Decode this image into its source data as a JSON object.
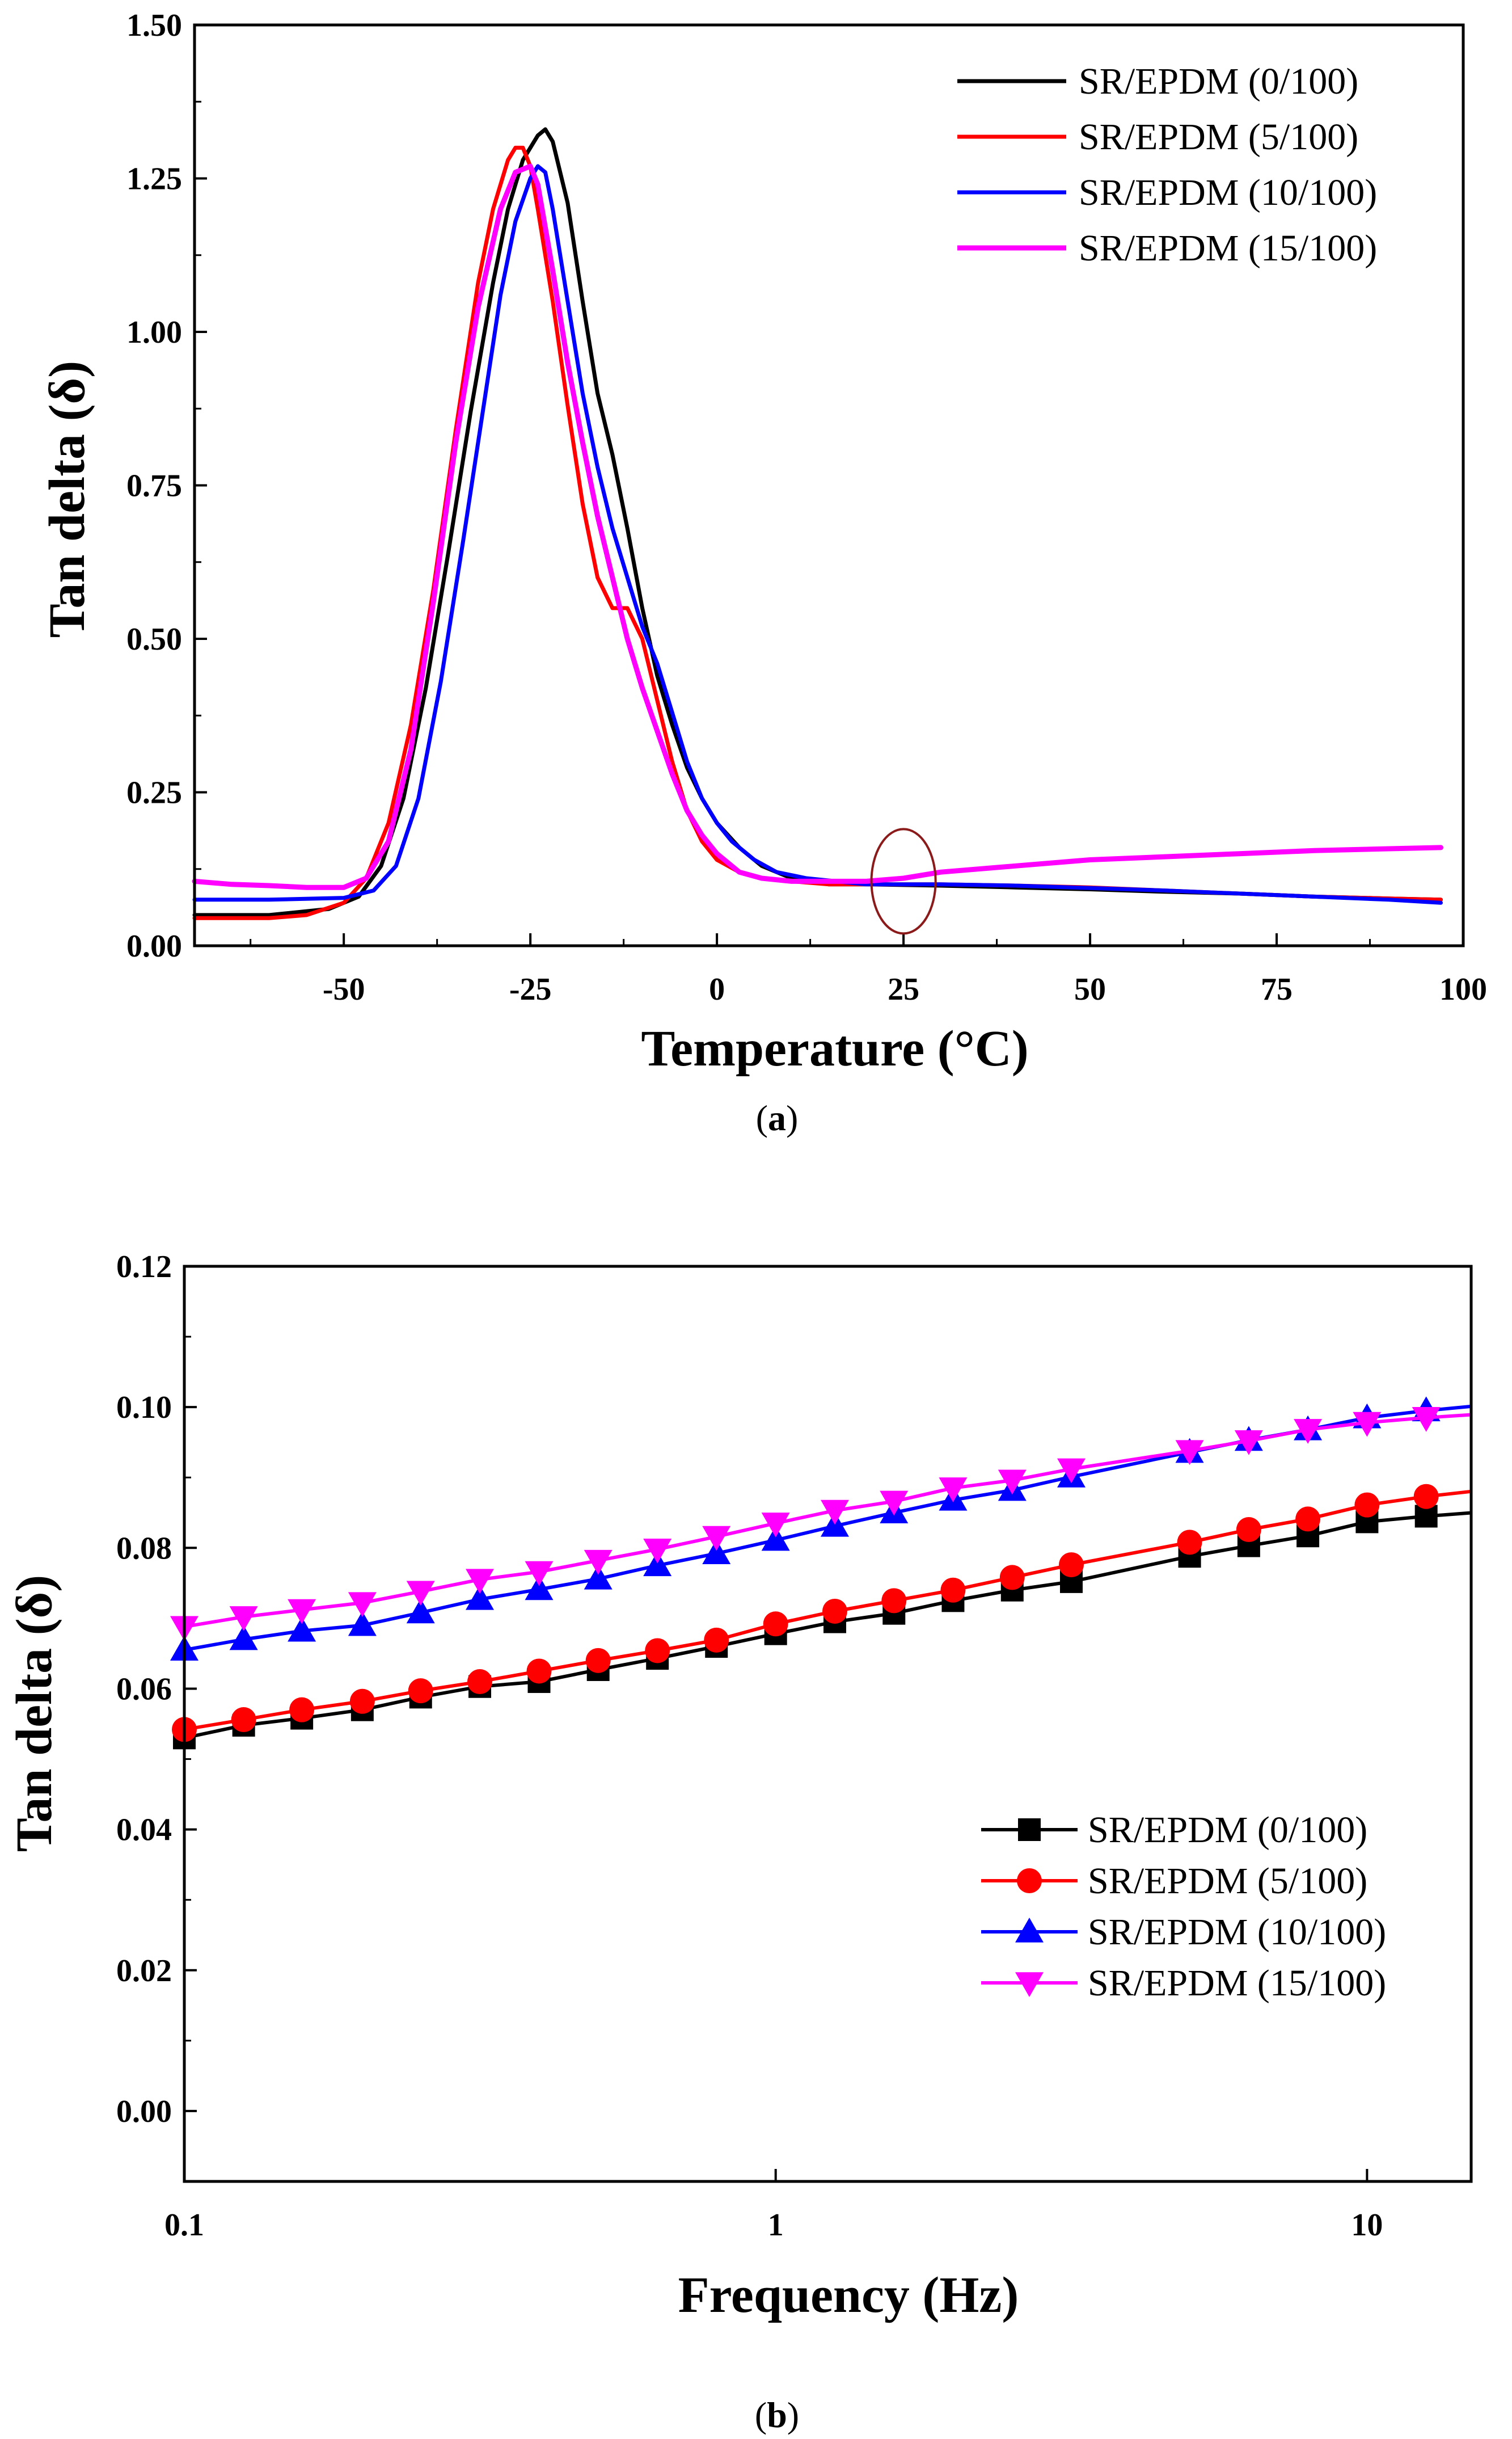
{
  "chart_data": [
    {
      "type": "line",
      "panel": "a",
      "caption_open": "(",
      "caption_letter": "a",
      "caption_close": ")",
      "xlabel": "Temperature (°C)",
      "ylabel": "Tan delta (δ)",
      "xlim": [
        -70,
        100
      ],
      "ylim": [
        0.0,
        1.5
      ],
      "xticks": [
        -50,
        -25,
        0,
        25,
        50,
        75,
        100
      ],
      "xtick_labels": [
        "-50",
        "-25",
        "0",
        "25",
        "50",
        "75",
        "100"
      ],
      "yticks": [
        0.0,
        0.25,
        0.5,
        0.75,
        1.0,
        1.25,
        1.5
      ],
      "ytick_labels": [
        "0.00",
        "0.25",
        "0.50",
        "0.75",
        "1.00",
        "1.25",
        "1.50"
      ],
      "legend_position": "top-right",
      "annotation": {
        "type": "ellipse",
        "center": [
          25,
          0.105
        ],
        "radius": [
          4.3,
          0.085
        ],
        "color": "#8B1A1A"
      },
      "series": [
        {
          "name": "SR/EPDM (0/100)",
          "color": "#000000",
          "x": [
            -70,
            -60,
            -52,
            -48,
            -45,
            -42,
            -39,
            -36,
            -33,
            -30,
            -28,
            -26,
            -24,
            -23,
            -22,
            -20,
            -18,
            -16,
            -14,
            -12,
            -10,
            -8,
            -6,
            -4,
            -2,
            0,
            3,
            6,
            10,
            15,
            20,
            30,
            40,
            50,
            60,
            70,
            80,
            90,
            97
          ],
          "y": [
            0.05,
            0.05,
            0.06,
            0.08,
            0.13,
            0.24,
            0.42,
            0.64,
            0.87,
            1.08,
            1.2,
            1.28,
            1.32,
            1.33,
            1.31,
            1.21,
            1.05,
            0.9,
            0.8,
            0.68,
            0.55,
            0.44,
            0.36,
            0.29,
            0.24,
            0.2,
            0.16,
            0.13,
            0.11,
            0.1,
            0.1,
            0.098,
            0.095,
            0.092,
            0.088,
            0.085,
            0.08,
            0.077,
            0.075
          ]
        },
        {
          "name": "SR/EPDM (5/100)",
          "color": "#FF0000",
          "x": [
            -70,
            -60,
            -55,
            -50,
            -47,
            -44,
            -41,
            -38,
            -35,
            -32,
            -30,
            -28,
            -27,
            -26,
            -25,
            -24,
            -22,
            -20,
            -18,
            -16,
            -14,
            -12,
            -10,
            -8,
            -6,
            -4,
            -2,
            0,
            3,
            6,
            10,
            15,
            20,
            30,
            40,
            50,
            60,
            70,
            80,
            90,
            97
          ],
          "y": [
            0.045,
            0.045,
            0.05,
            0.07,
            0.11,
            0.2,
            0.36,
            0.58,
            0.84,
            1.08,
            1.2,
            1.28,
            1.3,
            1.3,
            1.27,
            1.2,
            1.05,
            0.88,
            0.72,
            0.6,
            0.55,
            0.55,
            0.5,
            0.4,
            0.3,
            0.22,
            0.17,
            0.14,
            0.12,
            0.11,
            0.105,
            0.1,
            0.1,
            0.1,
            0.098,
            0.095,
            0.09,
            0.085,
            0.08,
            0.077,
            0.075
          ]
        },
        {
          "name": "SR/EPDM (10/100)",
          "color": "#0000FF",
          "x": [
            -70,
            -60,
            -50,
            -46,
            -43,
            -40,
            -37,
            -34,
            -31,
            -29,
            -27,
            -25,
            -24,
            -23,
            -22,
            -20,
            -18,
            -16,
            -14,
            -12,
            -10,
            -8,
            -6,
            -4,
            -2,
            0,
            2,
            5,
            8,
            12,
            16,
            20,
            30,
            40,
            50,
            60,
            70,
            80,
            90,
            97
          ],
          "y": [
            0.075,
            0.075,
            0.078,
            0.09,
            0.13,
            0.24,
            0.43,
            0.66,
            0.9,
            1.06,
            1.18,
            1.25,
            1.27,
            1.26,
            1.2,
            1.05,
            0.9,
            0.78,
            0.68,
            0.6,
            0.52,
            0.46,
            0.38,
            0.3,
            0.24,
            0.2,
            0.17,
            0.14,
            0.12,
            0.11,
            0.105,
            0.1,
            0.1,
            0.098,
            0.094,
            0.09,
            0.085,
            0.08,
            0.075,
            0.07
          ]
        },
        {
          "name": "SR/EPDM (15/100)",
          "color": "#FF00FF",
          "x": [
            -70,
            -65,
            -60,
            -55,
            -50,
            -47,
            -44,
            -41,
            -38,
            -35,
            -32,
            -29,
            -27,
            -25,
            -24,
            -23,
            -22,
            -20,
            -18,
            -16,
            -14,
            -12,
            -10,
            -8,
            -6,
            -4,
            -2,
            0,
            3,
            6,
            10,
            15,
            20,
            25,
            30,
            40,
            50,
            60,
            70,
            80,
            90,
            97
          ],
          "y": [
            0.105,
            0.1,
            0.098,
            0.095,
            0.095,
            0.11,
            0.17,
            0.32,
            0.56,
            0.82,
            1.04,
            1.2,
            1.26,
            1.27,
            1.24,
            1.17,
            1.1,
            0.95,
            0.82,
            0.7,
            0.6,
            0.5,
            0.42,
            0.35,
            0.28,
            0.22,
            0.18,
            0.15,
            0.12,
            0.11,
            0.105,
            0.105,
            0.105,
            0.11,
            0.12,
            0.13,
            0.14,
            0.145,
            0.15,
            0.155,
            0.158,
            0.16
          ]
        }
      ]
    },
    {
      "type": "line",
      "panel": "b",
      "caption_open": "(",
      "caption_letter": "b",
      "caption_close": ")",
      "xlabel": "Frequency (Hz)",
      "ylabel": "Tan delta (δ)",
      "xscale": "log",
      "xlim": [
        0.1,
        15
      ],
      "ylim": [
        -0.01,
        0.12
      ],
      "xticks": [
        0.1,
        1,
        10
      ],
      "xtick_labels": [
        "0.1",
        "1",
        "10"
      ],
      "yticks": [
        0.0,
        0.02,
        0.04,
        0.06,
        0.08,
        0.1,
        0.12
      ],
      "ytick_labels": [
        "0.00",
        "0.02",
        "0.04",
        "0.06",
        "0.08",
        "0.10",
        "0.12"
      ],
      "legend_position": "bottom-right",
      "x": [
        0.1,
        0.126,
        0.158,
        0.2,
        0.251,
        0.316,
        0.398,
        0.501,
        0.631,
        0.794,
        1.0,
        1.259,
        1.585,
        1.995,
        2.512,
        3.162,
        5.012,
        6.31,
        7.943,
        10.0,
        12.59
      ],
      "series": [
        {
          "name": "SR/EPDM (0/100)",
          "color": "#000000",
          "marker": "square",
          "values": [
            0.053,
            0.0548,
            0.0558,
            0.057,
            0.0588,
            0.0603,
            0.061,
            0.0627,
            0.0643,
            0.066,
            0.0678,
            0.0695,
            0.0707,
            0.0725,
            0.074,
            0.0752,
            0.0788,
            0.0803,
            0.0817,
            0.0837,
            0.0845
          ]
        },
        {
          "name": "SR/EPDM (5/100)",
          "color": "#FF0000",
          "marker": "circle",
          "values": [
            0.0542,
            0.0556,
            0.057,
            0.0582,
            0.0597,
            0.061,
            0.0625,
            0.064,
            0.0654,
            0.0669,
            0.0692,
            0.071,
            0.0725,
            0.074,
            0.0758,
            0.0776,
            0.0808,
            0.0826,
            0.0841,
            0.0861,
            0.0873
          ]
        },
        {
          "name": "SR/EPDM (10/100)",
          "color": "#0000FF",
          "marker": "triangle-up",
          "values": [
            0.0655,
            0.067,
            0.0682,
            0.069,
            0.0708,
            0.0727,
            0.0741,
            0.0756,
            0.0775,
            0.0792,
            0.0811,
            0.0831,
            0.085,
            0.0868,
            0.0882,
            0.0901,
            0.0936,
            0.0953,
            0.0968,
            0.0985,
            0.0995
          ]
        },
        {
          "name": "SR/EPDM (15/100)",
          "color": "#FF00FF",
          "marker": "triangle-down",
          "values": [
            0.0688,
            0.0702,
            0.0712,
            0.0722,
            0.0738,
            0.0755,
            0.0766,
            0.0782,
            0.0798,
            0.0816,
            0.0835,
            0.0853,
            0.0866,
            0.0885,
            0.0896,
            0.0912,
            0.0938,
            0.0952,
            0.0968,
            0.0978,
            0.0985
          ]
        }
      ]
    }
  ]
}
